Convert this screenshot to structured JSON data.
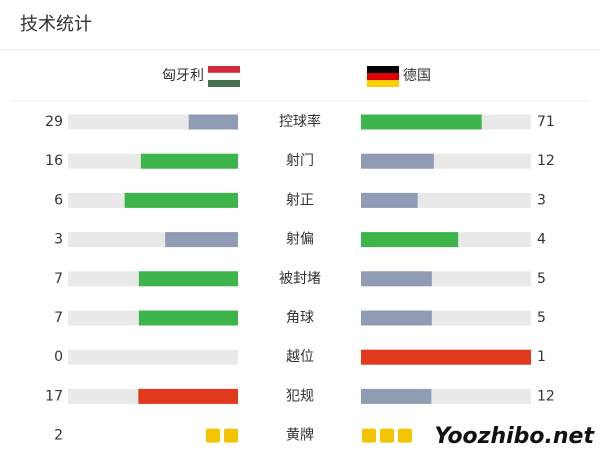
{
  "header": {
    "title": "技术统计"
  },
  "teams": {
    "home": "匈牙利",
    "away": "德国"
  },
  "stats": [
    {
      "label": "控球率",
      "home": 29,
      "away": 71,
      "home_color": "#8f9cb3",
      "away_color": "#3db54a"
    },
    {
      "label": "射门",
      "home": 16,
      "away": 12,
      "home_color": "#3db54a",
      "away_color": "#8f9cb3"
    },
    {
      "label": "射正",
      "home": 6,
      "away": 3,
      "home_color": "#3db54a",
      "away_color": "#8f9cb3"
    },
    {
      "label": "射偏",
      "home": 3,
      "away": 4,
      "home_color": "#8f9cb3",
      "away_color": "#3db54a"
    },
    {
      "label": "被封堵",
      "home": 7,
      "away": 5,
      "home_color": "#3db54a",
      "away_color": "#8f9cb3"
    },
    {
      "label": "角球",
      "home": 7,
      "away": 5,
      "home_color": "#3db54a",
      "away_color": "#8f9cb3"
    },
    {
      "label": "越位",
      "home": 0,
      "away": 1,
      "home_color": "#8f9cb3",
      "away_color": "#e0391e"
    },
    {
      "label": "犯规",
      "home": 17,
      "away": 12,
      "home_color": "#e0391e",
      "away_color": "#8f9cb3"
    }
  ],
  "cards": {
    "label": "黄牌",
    "home": 2,
    "away": 3,
    "color": "#f5c400"
  },
  "watermark": "Yoozhibo.net"
}
